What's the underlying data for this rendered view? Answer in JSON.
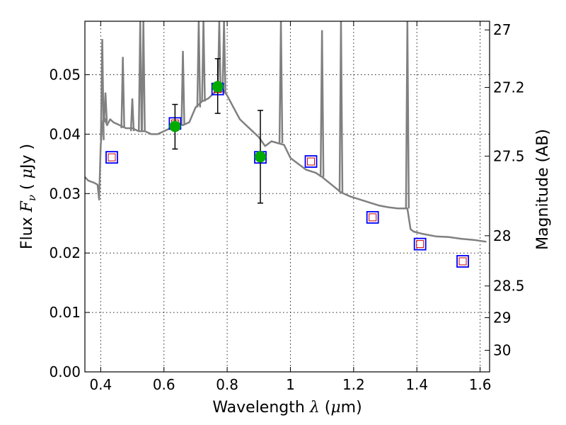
{
  "chart_data": {
    "type": "scatter",
    "xlabel_parts": [
      "Wavelength",
      "λ",
      " (",
      "μ",
      "m)"
    ],
    "ylabel_parts": [
      "Flux",
      "F",
      "ν",
      " ( ",
      "μ",
      "Jy )"
    ],
    "y2label": "Magnitude (AB)",
    "xlim": [
      0.35,
      1.63
    ],
    "ylim": [
      0.0,
      0.059
    ],
    "x_ticks": [
      0.4,
      0.6,
      0.8,
      1.0,
      1.2,
      1.4,
      1.6
    ],
    "x_tick_labels": [
      "0.4",
      "0.6",
      "0.8",
      "1",
      "1.2",
      "1.4",
      "1.6"
    ],
    "y_ticks": [
      0.0,
      0.01,
      0.02,
      0.03,
      0.04,
      0.05
    ],
    "y_tick_labels": [
      "0.00",
      "0.01",
      "0.02",
      "0.03",
      "0.04",
      "0.05"
    ],
    "y2_ticks": [
      27,
      27.2,
      27.5,
      28,
      28.5,
      29,
      30
    ],
    "y2_tick_labels": [
      "27",
      "27.2",
      "27.5",
      "28",
      "28.5",
      "29",
      "30"
    ],
    "grid": true,
    "colors": {
      "sed": "#808080",
      "model_box": "#0000ff",
      "predicted": "#cc0000",
      "observed": "#00aa00",
      "errorbar": "#000000"
    },
    "series": [
      {
        "role": "model-spectrum",
        "style": "line",
        "x": [
          0.35,
          0.36,
          0.37,
          0.38,
          0.39,
          0.395,
          0.4,
          0.405,
          0.41,
          0.42,
          0.43,
          0.44,
          0.46,
          0.48,
          0.5,
          0.52,
          0.54,
          0.56,
          0.58,
          0.6,
          0.62,
          0.64,
          0.66,
          0.68,
          0.7,
          0.72,
          0.74,
          0.76,
          0.78,
          0.8,
          0.82,
          0.84,
          0.86,
          0.88,
          0.9,
          0.92,
          0.94,
          0.96,
          0.98,
          1.0,
          1.02,
          1.05,
          1.08,
          1.1,
          1.13,
          1.16,
          1.19,
          1.22,
          1.25,
          1.28,
          1.31,
          1.34,
          1.37,
          1.38,
          1.39,
          1.42,
          1.46,
          1.5,
          1.54,
          1.58,
          1.62
        ],
        "y": [
          0.0328,
          0.0322,
          0.032,
          0.0318,
          0.0315,
          0.029,
          0.038,
          0.0415,
          0.043,
          0.0415,
          0.0425,
          0.042,
          0.0415,
          0.041,
          0.041,
          0.0405,
          0.0405,
          0.04,
          0.04,
          0.0405,
          0.041,
          0.042,
          0.0415,
          0.042,
          0.0445,
          0.0455,
          0.046,
          0.047,
          0.048,
          0.0465,
          0.0445,
          0.0425,
          0.0415,
          0.0405,
          0.0395,
          0.038,
          0.0388,
          0.0385,
          0.0382,
          0.036,
          0.0352,
          0.034,
          0.0335,
          0.0328,
          0.0315,
          0.0302,
          0.0295,
          0.029,
          0.0285,
          0.028,
          0.0277,
          0.0275,
          0.0275,
          0.024,
          0.0236,
          0.0232,
          0.0228,
          0.0227,
          0.0224,
          0.0222,
          0.0219
        ]
      },
      {
        "role": "emission-lines",
        "style": "spikes",
        "lines": [
          {
            "x": 0.405,
            "base": 0.039,
            "peak": 0.056
          },
          {
            "x": 0.415,
            "base": 0.042,
            "peak": 0.047
          },
          {
            "x": 0.47,
            "base": 0.041,
            "peak": 0.053
          },
          {
            "x": 0.5,
            "base": 0.0405,
            "peak": 0.046
          },
          {
            "x": 0.525,
            "base": 0.0405,
            "peak": 0.059
          },
          {
            "x": 0.535,
            "base": 0.0405,
            "peak": 0.059
          },
          {
            "x": 0.66,
            "base": 0.0415,
            "peak": 0.054
          },
          {
            "x": 0.71,
            "base": 0.0445,
            "peak": 0.059
          },
          {
            "x": 0.725,
            "base": 0.0455,
            "peak": 0.059
          },
          {
            "x": 0.775,
            "base": 0.047,
            "peak": 0.059
          },
          {
            "x": 0.79,
            "base": 0.047,
            "peak": 0.059
          },
          {
            "x": 0.97,
            "base": 0.0385,
            "peak": 0.059
          },
          {
            "x": 1.1,
            "base": 0.0328,
            "peak": 0.0575
          },
          {
            "x": 1.16,
            "base": 0.0302,
            "peak": 0.059
          },
          {
            "x": 1.37,
            "base": 0.0275,
            "peak": 0.059
          }
        ]
      },
      {
        "role": "model-bandpass",
        "style": "open-square",
        "x": [
          0.435,
          0.635,
          0.77,
          0.905,
          1.065,
          1.26,
          1.41,
          1.545
        ],
        "y": [
          0.0361,
          0.0418,
          0.0476,
          0.0361,
          0.0354,
          0.026,
          0.0215,
          0.0186
        ]
      },
      {
        "role": "predicted",
        "style": "small-open-square",
        "x": [
          0.435,
          0.635,
          0.77,
          0.905,
          1.065,
          1.26,
          1.41,
          1.545
        ],
        "y": [
          0.0361,
          0.0418,
          0.0476,
          0.0361,
          0.0354,
          0.026,
          0.0215,
          0.0186
        ]
      },
      {
        "role": "observed",
        "style": "filled-circle-errorbar",
        "x": [
          0.635,
          0.77,
          0.905
        ],
        "y": [
          0.0413,
          0.048,
          0.0362
        ],
        "yerr_low": [
          0.0038,
          0.0045,
          0.0078
        ],
        "yerr_high": [
          0.0037,
          0.0047,
          0.0078
        ]
      }
    ]
  }
}
